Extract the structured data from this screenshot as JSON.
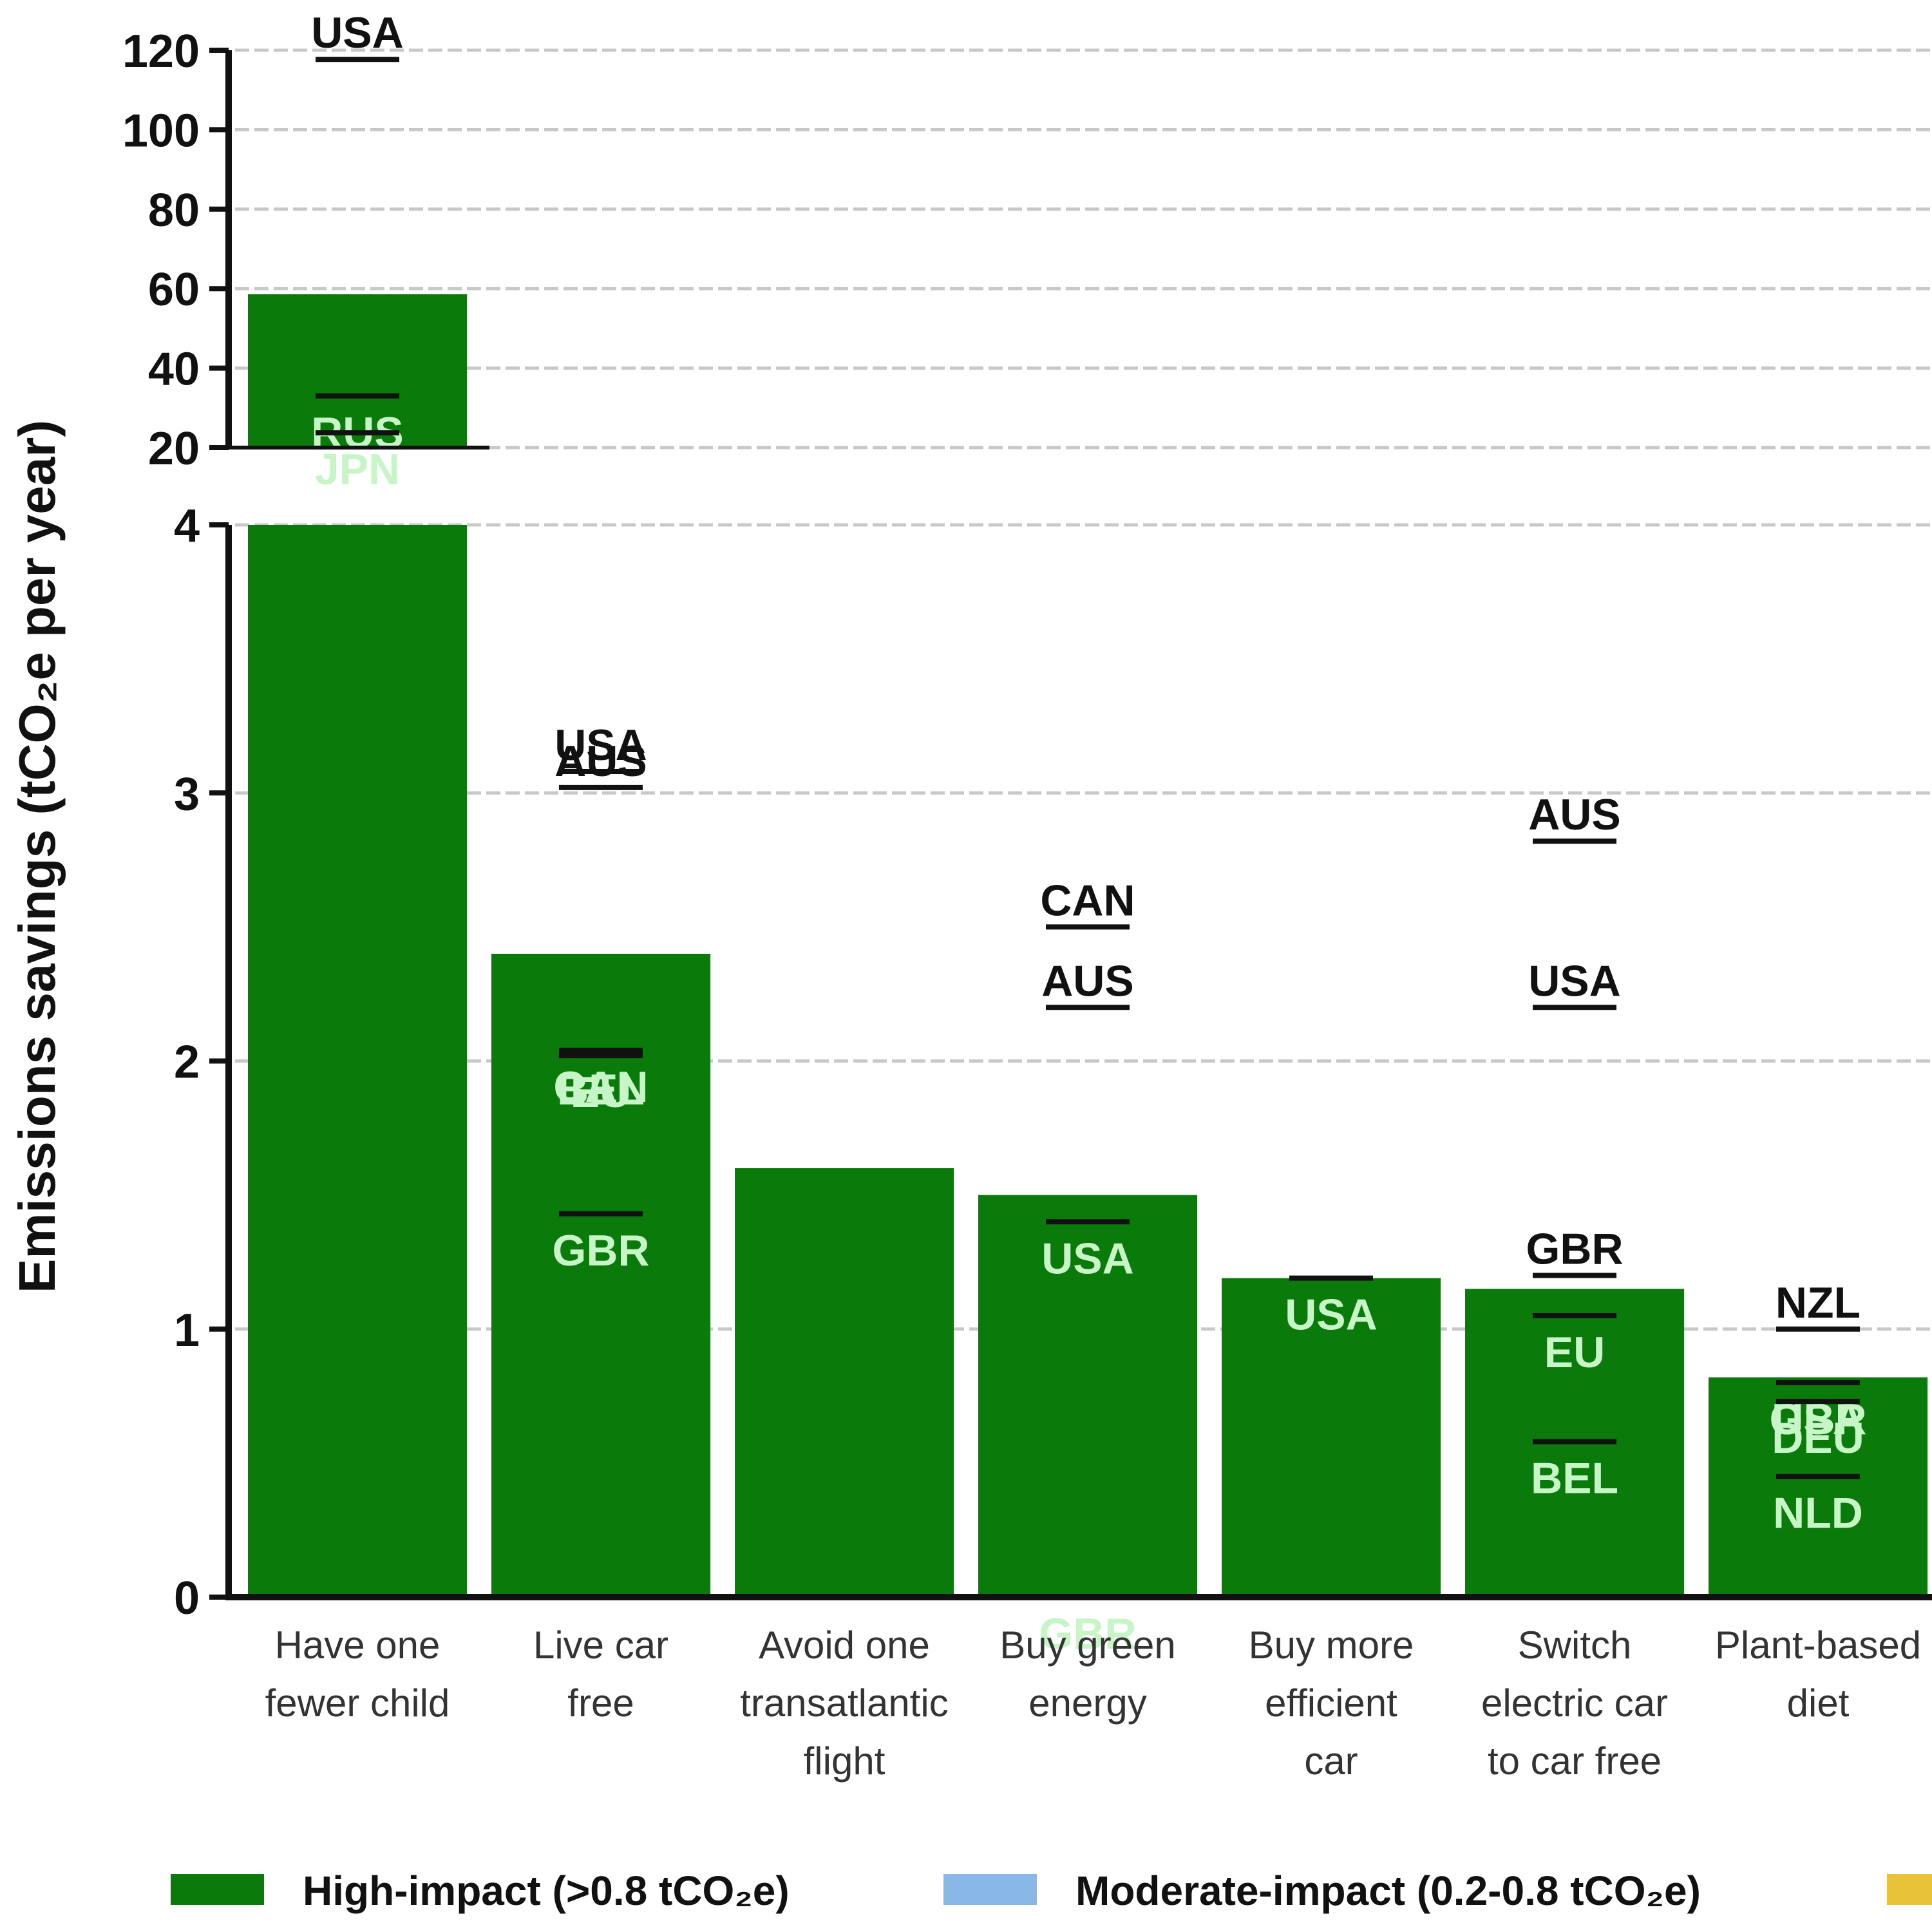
{
  "chart_data": {
    "type": "bar",
    "ylabel": "Emissions savings (tCO₂e per year)",
    "y_axis": {
      "broken": true,
      "lower_range": [
        0,
        4
      ],
      "lower_ticks": [
        "0",
        "1",
        "2",
        "3",
        "4"
      ],
      "upper_range": [
        20,
        120
      ],
      "upper_ticks": [
        "20",
        "40",
        "60",
        "80",
        "100",
        "120"
      ]
    },
    "grid": "horizontal dashed",
    "categories": [
      "Have one fewer child",
      "Live car free",
      "Avoid one transatlantic flight",
      "Buy green energy",
      "Buy more efficient car",
      "Switch electric car to car free",
      "Plant-based diet"
    ],
    "values": [
      58.6,
      2.4,
      1.6,
      1.5,
      1.19,
      1.15,
      0.82
    ],
    "colors": {
      "high": "#0a7a0a",
      "moderate": "#8ab8e6",
      "low": "#e8c33a",
      "label_inside": "#c8f5c8",
      "label_outside": "#111111"
    },
    "country_estimates": [
      {
        "category": 0,
        "label": "USA",
        "value": 117.7
      },
      {
        "category": 0,
        "label": "RUS",
        "value": 33
      },
      {
        "category": 0,
        "label": "JPN",
        "value": 23.7
      },
      {
        "category": 1,
        "label": "USA",
        "value": 3.08
      },
      {
        "category": 1,
        "label": "AUS",
        "value": 3.02
      },
      {
        "category": 1,
        "label": "CAN",
        "value": 2.04
      },
      {
        "category": 1,
        "label": "BEL",
        "value": 2.03
      },
      {
        "category": 1,
        "label": "EU",
        "value": 2.02
      },
      {
        "category": 1,
        "label": "GBR",
        "value": 1.43
      },
      {
        "category": 3,
        "label": "CAN",
        "value": 2.5
      },
      {
        "category": 3,
        "label": "AUS",
        "value": 2.2
      },
      {
        "category": 3,
        "label": "USA",
        "value": 1.4
      },
      {
        "category": 3,
        "label": "GBR",
        "value": 0.0
      },
      {
        "category": 4,
        "label": "USA",
        "value": 1.19
      },
      {
        "category": 5,
        "label": "AUS",
        "value": 2.82
      },
      {
        "category": 5,
        "label": "USA",
        "value": 2.2
      },
      {
        "category": 5,
        "label": "GBR",
        "value": 1.2
      },
      {
        "category": 5,
        "label": "EU",
        "value": 1.05
      },
      {
        "category": 5,
        "label": "BEL",
        "value": 0.58
      },
      {
        "category": 6,
        "label": "NZL",
        "value": 1.0
      },
      {
        "category": 6,
        "label": "USA",
        "value": 0.8
      },
      {
        "category": 6,
        "label": "GBR",
        "value": 0.8
      },
      {
        "category": 6,
        "label": "DEU",
        "value": 0.73
      },
      {
        "category": 6,
        "label": "NLD",
        "value": 0.45
      }
    ],
    "legend": {
      "placement": "bottom",
      "entries": [
        {
          "label": "High-impact (>0.8 tCO₂e)",
          "color": "#0a7a0a"
        },
        {
          "label": "Moderate-impact (0.2-0.8 tCO₂e)",
          "color": "#8ab8e6"
        },
        {
          "label": "",
          "color": "#e8c33a"
        }
      ]
    }
  }
}
